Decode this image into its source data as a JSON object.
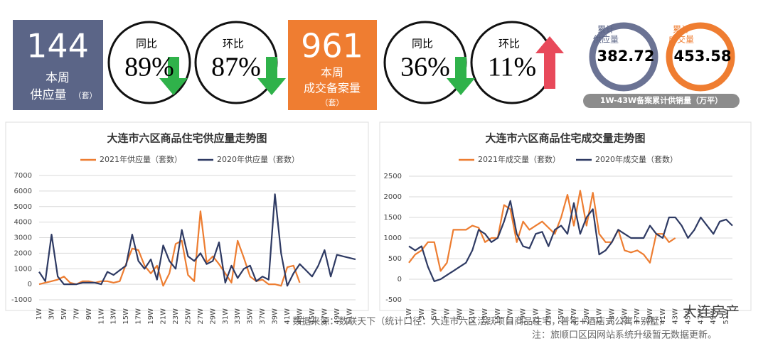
{
  "kpis": [
    {
      "value": "144",
      "label1": "本周",
      "label2": "供应量",
      "unit": "（套）"
    },
    {
      "label": "同比",
      "value": "89%"
    },
    {
      "label": "环比",
      "value": "87%"
    },
    {
      "value": "961",
      "label1": "本周",
      "label2": "成交备案量",
      "unit": "（套）"
    },
    {
      "label": "同比",
      "value": "36%"
    },
    {
      "label": "环比",
      "value": "11%"
    }
  ],
  "cumulative": {
    "items": [
      {
        "label1": "累计",
        "label2": "供应量",
        "value": "382.72"
      },
      {
        "label1": "累计",
        "label2": "成交量",
        "value": "453.58"
      }
    ],
    "caption": "1W-43W备案累计供销量（万平）"
  },
  "footer": {
    "source": "数据来源：数联天下（统计口径：大连市六区活跃项目商品住宅，普宅+酒店式公寓+别墅）",
    "note": "注：旅顺口区因网站系统升级暂无数据更新。",
    "watermark": "大连房产"
  },
  "chart_data": [
    {
      "type": "line",
      "title": "大连市六区商品住宅供应量走势图",
      "categories": [
        "1W",
        null,
        "3W",
        null,
        "5W",
        null,
        "7W",
        null,
        "9W",
        null,
        "11W",
        null,
        "13W",
        null,
        "15W",
        null,
        "17W",
        null,
        "19W",
        null,
        "21W",
        null,
        "23W",
        null,
        "25W",
        null,
        "27W",
        null,
        "29W",
        null,
        "31W",
        null,
        "33W",
        null,
        "35W",
        null,
        "37W",
        null,
        "39W",
        null,
        "41W",
        null,
        "43W",
        null,
        "45W",
        null,
        "47W",
        null,
        "49W",
        null,
        "51W",
        null
      ],
      "series": [
        {
          "name": "2021年供应量（套数）",
          "color": "#ed7d31",
          "values": [
            0,
            100,
            200,
            300,
            500,
            100,
            0,
            200,
            200,
            100,
            200,
            200,
            100,
            200,
            1300,
            2300,
            2200,
            1200,
            700,
            1200,
            -100,
            700,
            2600,
            2800,
            600,
            200,
            4700,
            1400,
            1800,
            1300,
            700,
            100,
            2800,
            1700,
            500,
            200,
            300,
            0,
            0,
            -100,
            1100,
            1200,
            100,
            null,
            null,
            null,
            null,
            null,
            null,
            null,
            null,
            null
          ]
        },
        {
          "name": "2020年供应量（套数）",
          "color": "#2e3a63",
          "values": [
            800,
            200,
            3200,
            500,
            0,
            0,
            0,
            100,
            100,
            100,
            0,
            800,
            600,
            900,
            1200,
            3200,
            1500,
            1000,
            1600,
            300,
            2500,
            1500,
            1000,
            3500,
            1800,
            1500,
            2000,
            1300,
            1500,
            2700,
            100,
            1200,
            400,
            1000,
            1200,
            200,
            500,
            300,
            5800,
            2000,
            -100,
            700,
            1300,
            900,
            500,
            1200,
            2200,
            500,
            1900,
            1800,
            1700,
            1600
          ]
        }
      ],
      "ylim": [
        -1000,
        7000
      ],
      "yticks": [
        -1000,
        0,
        1000,
        2000,
        3000,
        4000,
        5000,
        6000,
        7000
      ],
      "grid": true,
      "legend": "top"
    },
    {
      "type": "line",
      "title": "大连市六区商品住宅成交量走势图",
      "categories": [
        "1W",
        null,
        "3W",
        null,
        "5W",
        null,
        "7W",
        null,
        "9W",
        null,
        "11W",
        null,
        "13W",
        null,
        "15W",
        null,
        "17W",
        null,
        "19W",
        null,
        "21W",
        null,
        "23W",
        null,
        "25W",
        null,
        "27W",
        null,
        "29W",
        null,
        "31W",
        null,
        "33W",
        null,
        "35W",
        null,
        "37W",
        null,
        "39W",
        null,
        "41W",
        null,
        "43W",
        null,
        "45W",
        null,
        "47W",
        null,
        "49W",
        null,
        "51W",
        null
      ],
      "series": [
        {
          "name": "2021年成交量（套数）",
          "color": "#ed7d31",
          "values": [
            400,
            600,
            700,
            900,
            900,
            200,
            400,
            1200,
            1200,
            1200,
            1300,
            1250,
            900,
            1000,
            1000,
            1800,
            1700,
            900,
            1400,
            1200,
            1300,
            1400,
            1250,
            1100,
            1500,
            2050,
            1300,
            2150,
            1300,
            2100,
            1100,
            900,
            900,
            1200,
            700,
            650,
            700,
            600,
            400,
            1100,
            1100,
            900,
            1000,
            null,
            null,
            null,
            null,
            null,
            null,
            null,
            null,
            null
          ]
        },
        {
          "name": "2020年成交量（套数）",
          "color": "#2e3a63",
          "values": [
            800,
            700,
            800,
            300,
            -50,
            0,
            100,
            200,
            300,
            400,
            700,
            1200,
            1100,
            900,
            1000,
            1400,
            1900,
            1100,
            800,
            750,
            1100,
            1150,
            800,
            1200,
            1300,
            1100,
            1850,
            1100,
            1500,
            1700,
            600,
            700,
            900,
            1200,
            1100,
            1000,
            1000,
            1000,
            1300,
            1100,
            1000,
            1500,
            1500,
            1300,
            1000,
            1200,
            1500,
            1300,
            1100,
            1400,
            1450,
            1300
          ]
        }
      ],
      "ylim": [
        -500,
        2500
      ],
      "yticks": [
        -500,
        0,
        500,
        1000,
        1500,
        2000,
        2500
      ],
      "grid": true,
      "legend": "top"
    }
  ]
}
